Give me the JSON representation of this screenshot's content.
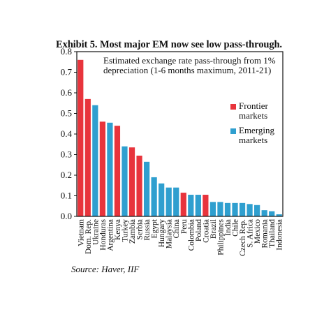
{
  "title": "Exhibit 5. Most major EM now see low pass-through.",
  "source": "Source: Haver, IIF",
  "chart_data": {
    "type": "bar",
    "subtitle": "Estimated exchange rate pass-through from 1% depreciation (1-6 months maximum, 2011-21)",
    "ylim": [
      0,
      0.8
    ],
    "yticks": [
      "0.0",
      "0.1",
      "0.2",
      "0.3",
      "0.4",
      "0.5",
      "0.6",
      "0.7",
      "0.8"
    ],
    "grid": false,
    "legend_position": "right",
    "legend": [
      {
        "name_line1": "Frontier",
        "name_line2": "markets",
        "color": "#e8343c"
      },
      {
        "name_line1": "Emerging",
        "name_line2": "markets",
        "color": "#2f9fcf"
      }
    ],
    "categories": [
      "Vietnam",
      "Dom. Rep.",
      "Ukraine",
      "Honduras",
      "Argentina",
      "Kenya",
      "Turkey",
      "Zambia",
      "Serbia",
      "Russia",
      "Egypt",
      "Hungary",
      "Malaysia",
      "China",
      "Peru",
      "Colombia",
      "Poland",
      "Croatia",
      "Brazil",
      "Philippines",
      "India",
      "Chile",
      "Czech Rep.",
      "S. Africa",
      "Mexico",
      "Romania",
      "Thailand",
      "Indonesia"
    ],
    "values": [
      0.76,
      0.57,
      0.54,
      0.46,
      0.455,
      0.44,
      0.34,
      0.335,
      0.295,
      0.265,
      0.19,
      0.16,
      0.14,
      0.14,
      0.115,
      0.105,
      0.105,
      0.105,
      0.07,
      0.07,
      0.065,
      0.065,
      0.065,
      0.06,
      0.055,
      0.03,
      0.025,
      0.01
    ],
    "groups": [
      "F",
      "F",
      "E",
      "F",
      "E",
      "F",
      "E",
      "F",
      "F",
      "E",
      "E",
      "E",
      "E",
      "E",
      "F",
      "E",
      "E",
      "F",
      "E",
      "E",
      "E",
      "E",
      "E",
      "E",
      "E",
      "E",
      "E",
      "E"
    ]
  }
}
